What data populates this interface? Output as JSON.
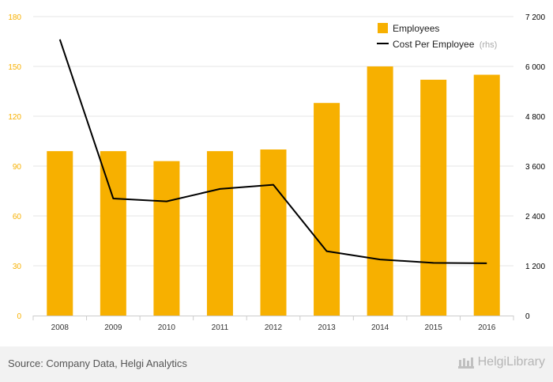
{
  "chart_data": {
    "type": "bar",
    "categories": [
      "2008",
      "2009",
      "2010",
      "2011",
      "2012",
      "2013",
      "2014",
      "2015",
      "2016"
    ],
    "series": [
      {
        "name": "Employees",
        "type": "bar",
        "axis": "left",
        "color": "#F7B000",
        "values": [
          99,
          99,
          93,
          99,
          100,
          128,
          150,
          142,
          145
        ]
      },
      {
        "name": "Cost Per Employee",
        "type": "line",
        "axis": "right",
        "color": "#000000",
        "note": "(rhs)",
        "values": [
          6650,
          2820,
          2750,
          3050,
          3150,
          1550,
          1350,
          1270,
          1260
        ]
      }
    ],
    "left_axis": {
      "min": 0,
      "max": 180,
      "ticks": [
        "0",
        "30",
        "60",
        "90",
        "120",
        "150",
        "180"
      ],
      "color": "#F7B000"
    },
    "right_axis": {
      "min": 0,
      "max": 7200,
      "ticks": [
        "0",
        "1 200",
        "2 400",
        "3 600",
        "4 800",
        "6 000",
        "7 200"
      ],
      "color": "#000000"
    },
    "grid": true,
    "legend": "top-right"
  },
  "legend": {
    "employees": "Employees",
    "cost": "Cost Per Employee",
    "cost_note": "(rhs)"
  },
  "footer": {
    "source": "Source: Company Data, Helgi Analytics",
    "brand": "HelgiLibrary"
  }
}
